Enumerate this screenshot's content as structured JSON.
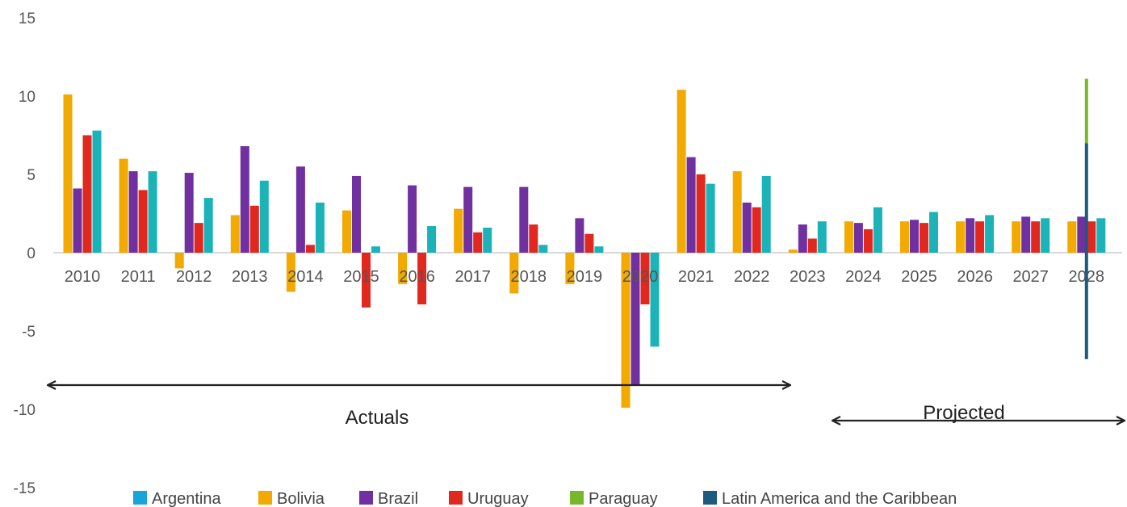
{
  "chart_data": {
    "type": "bar",
    "title": "",
    "xlabel": "",
    "ylabel": "",
    "ylim": [
      -15,
      15
    ],
    "yticks": [
      15,
      10,
      5,
      0,
      -5,
      -10,
      -15
    ],
    "grid": false,
    "legend_position": "bottom",
    "categories": [
      "2010",
      "2011",
      "2012",
      "2013",
      "2014",
      "2015",
      "2016",
      "2017",
      "2018",
      "2019",
      "2020",
      "2021",
      "2022",
      "2023",
      "2024",
      "2025",
      "2026",
      "2027",
      "2028"
    ],
    "series": [
      {
        "name": "Argentina",
        "color": "#1aa3d9",
        "values": [
          null,
          null,
          null,
          null,
          null,
          null,
          null,
          null,
          null,
          null,
          null,
          null,
          null,
          null,
          null,
          null,
          null,
          null,
          null
        ]
      },
      {
        "name": "Bolivia",
        "color": "#f2a900",
        "values": [
          10.1,
          6.0,
          -1.0,
          2.4,
          -2.5,
          2.7,
          -2.0,
          2.8,
          -2.6,
          -2.0,
          -9.9,
          10.4,
          5.2,
          0.2,
          2.0,
          2.0,
          2.0,
          2.0,
          2.0
        ]
      },
      {
        "name": "Brazil",
        "color": "#7030a0",
        "values": [
          4.1,
          5.2,
          5.1,
          6.8,
          5.5,
          4.9,
          4.3,
          4.2,
          4.2,
          2.2,
          -8.5,
          6.1,
          3.2,
          1.8,
          1.9,
          2.1,
          2.2,
          2.3,
          2.3
        ]
      },
      {
        "name": "Uruguay",
        "color": "#e0281e",
        "values": [
          7.5,
          4.0,
          1.9,
          3.0,
          0.5,
          -3.5,
          -3.3,
          1.3,
          1.8,
          1.2,
          -3.3,
          5.0,
          2.9,
          0.9,
          1.5,
          1.9,
          2.0,
          2.0,
          2.0
        ]
      },
      {
        "name": "Paraguay",
        "color": "#77b72c",
        "values": [
          null,
          null,
          null,
          null,
          null,
          null,
          null,
          null,
          null,
          null,
          null,
          null,
          null,
          null,
          null,
          null,
          null,
          null,
          11.1
        ]
      },
      {
        "name": "Latin America and the Caribbean",
        "color": "#1c5a7f",
        "values": [
          null,
          null,
          null,
          null,
          null,
          null,
          null,
          null,
          null,
          null,
          null,
          null,
          null,
          null,
          null,
          null,
          null,
          null,
          7.0
        ]
      }
    ],
    "extra_series": {
      "name": "",
      "color": "#1bb3b8",
      "values": [
        7.8,
        5.2,
        3.5,
        4.6,
        3.2,
        0.4,
        1.7,
        1.6,
        0.5,
        0.4,
        -6.0,
        4.4,
        4.9,
        2.0,
        2.9,
        2.6,
        2.4,
        2.2,
        2.2
      ]
    },
    "latam_2028_low": -6.8,
    "annotations": [
      {
        "text": "Actuals",
        "from": "2010",
        "to": "2022"
      },
      {
        "text": "Projected",
        "from": "2023",
        "to": "2028"
      }
    ]
  }
}
